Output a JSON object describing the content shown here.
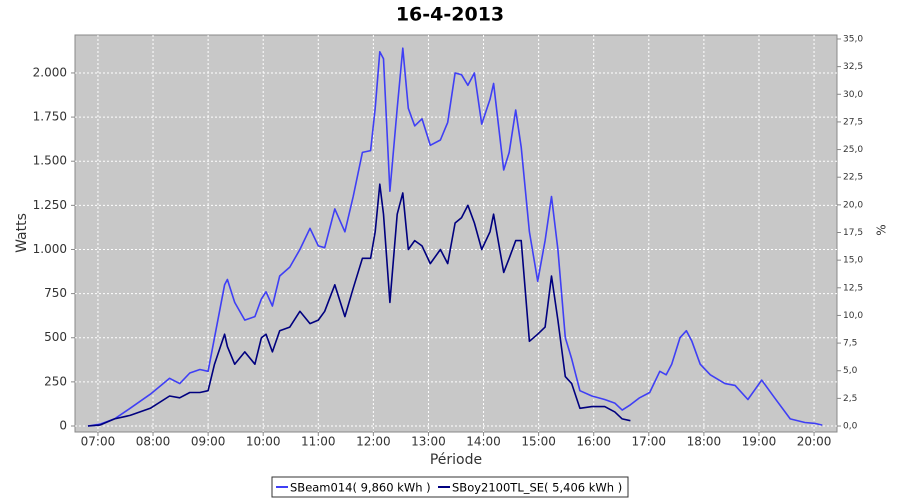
{
  "chart_data": {
    "type": "line",
    "title": "16-4-2013",
    "xlabel": "Période",
    "ylabel": "Watts",
    "y2label": "%",
    "x": [
      "06:49",
      "07:02",
      "07:18",
      "07:35",
      "07:57",
      "08:18",
      "08:29",
      "08:40",
      "08:51",
      "09:00",
      "09:07",
      "09:18",
      "09:21",
      "09:29",
      "09:40",
      "09:51",
      "09:58",
      "10:03",
      "10:10",
      "10:18",
      "10:29",
      "10:40",
      "10:51",
      "11:00",
      "11:07",
      "11:18",
      "11:29",
      "11:38",
      "11:48",
      "11:57",
      "12:02",
      "12:07",
      "12:11",
      "12:18",
      "12:26",
      "12:32",
      "12:38",
      "12:45",
      "12:53",
      "13:02",
      "13:13",
      "13:21",
      "13:29",
      "13:36",
      "13:43",
      "13:50",
      "13:58",
      "14:07",
      "14:11",
      "14:22",
      "14:28",
      "14:35",
      "14:41",
      "14:50",
      "14:59",
      "15:07",
      "15:14",
      "15:21",
      "15:29",
      "15:36",
      "15:45",
      "15:58",
      "16:12",
      "16:23",
      "16:31",
      "16:40",
      "16:50",
      "17:01",
      "17:12",
      "17:19",
      "17:25",
      "17:34",
      "17:41",
      "17:47",
      "17:56",
      "18:07",
      "18:23",
      "18:34",
      "18:48",
      "19:03",
      "19:17",
      "19:34",
      "19:50",
      "20:01",
      "20:09"
    ],
    "series": [
      {
        "name": "SBeam014( 9,860 kWh )",
        "color": "#3f3ff5",
        "values": [
          0,
          10,
          40,
          100,
          180,
          270,
          240,
          300,
          320,
          310,
          500,
          800,
          830,
          700,
          600,
          620,
          720,
          760,
          680,
          850,
          900,
          1000,
          1120,
          1020,
          1010,
          1230,
          1100,
          1300,
          1550,
          1560,
          1800,
          2120,
          2080,
          1330,
          1800,
          2140,
          1800,
          1700,
          1740,
          1590,
          1620,
          1720,
          2000,
          1990,
          1930,
          2000,
          1710,
          1850,
          1940,
          1450,
          1550,
          1790,
          1580,
          1100,
          820,
          1050,
          1300,
          1000,
          500,
          380,
          200,
          170,
          150,
          130,
          90,
          120,
          160,
          190,
          310,
          290,
          350,
          500,
          540,
          480,
          350,
          290,
          240,
          230,
          150,
          260,
          160,
          40,
          20,
          15,
          5
        ]
      },
      {
        "name": "SBoy2100TL_SE( 5,406 kWh )",
        "color": "#00007f",
        "values": [
          0,
          5,
          40,
          60,
          100,
          170,
          160,
          190,
          190,
          200,
          350,
          520,
          450,
          350,
          420,
          350,
          500,
          520,
          420,
          540,
          560,
          650,
          580,
          600,
          650,
          800,
          620,
          780,
          950,
          950,
          1100,
          1370,
          1200,
          700,
          1200,
          1320,
          1000,
          1050,
          1020,
          920,
          1000,
          920,
          1150,
          1180,
          1250,
          1150,
          1000,
          1100,
          1200,
          870,
          950,
          1050,
          1050,
          480,
          520,
          560,
          850,
          600,
          280,
          240,
          100,
          110,
          110,
          80,
          40,
          30,
          null,
          null,
          null,
          null,
          null,
          null,
          null,
          null,
          null,
          null,
          null,
          null,
          null,
          null,
          null,
          null,
          null,
          null,
          null
        ]
      }
    ],
    "xlim": [
      "06:35",
      "20:25"
    ],
    "xticks": [
      "07:00",
      "08:00",
      "09:00",
      "10:00",
      "11:00",
      "12:00",
      "13:00",
      "14:00",
      "15:00",
      "16:00",
      "17:00",
      "18:00",
      "19:00",
      "20:00"
    ],
    "ylim": [
      -34,
      2215
    ],
    "yticks": [
      0,
      250,
      500,
      750,
      {
        "value": 1000,
        "label": "1.000"
      },
      {
        "value": 1250,
        "label": "1.250"
      },
      {
        "value": 1500,
        "label": "1.500"
      },
      {
        "value": 1750,
        "label": "1.750"
      },
      {
        "value": 2000,
        "label": "2.000"
      }
    ],
    "y2lim": [
      -0.54,
      35.36
    ],
    "y2ticks": [
      {
        "value": 0,
        "label": "0,0"
      },
      {
        "value": 2.5,
        "label": "2,5"
      },
      {
        "value": 5,
        "label": "5,0"
      },
      {
        "value": 7.5,
        "label": "7,5"
      },
      {
        "value": 10,
        "label": "10,0"
      },
      {
        "value": 12.5,
        "label": "12,5"
      },
      {
        "value": 15,
        "label": "15,0"
      },
      {
        "value": 17.5,
        "label": "17,5"
      },
      {
        "value": 20,
        "label": "20,0"
      },
      {
        "value": 22.5,
        "label": "22,5"
      },
      {
        "value": 25,
        "label": "25,0"
      },
      {
        "value": 27.5,
        "label": "27,5"
      },
      {
        "value": 30,
        "label": "30,0"
      },
      {
        "value": 32.5,
        "label": "32,5"
      },
      {
        "value": 35,
        "label": "35,0"
      }
    ],
    "grid": true,
    "legend": "bottom"
  }
}
